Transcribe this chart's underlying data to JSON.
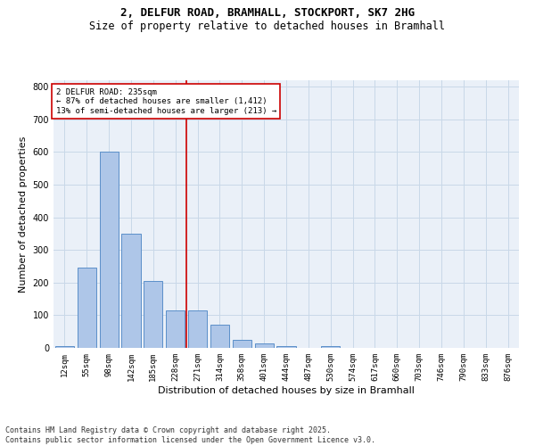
{
  "title1": "2, DELFUR ROAD, BRAMHALL, STOCKPORT, SK7 2HG",
  "title2": "Size of property relative to detached houses in Bramhall",
  "xlabel": "Distribution of detached houses by size in Bramhall",
  "ylabel": "Number of detached properties",
  "bar_labels": [
    "12sqm",
    "55sqm",
    "98sqm",
    "142sqm",
    "185sqm",
    "228sqm",
    "271sqm",
    "314sqm",
    "358sqm",
    "401sqm",
    "444sqm",
    "487sqm",
    "530sqm",
    "574sqm",
    "617sqm",
    "660sqm",
    "703sqm",
    "746sqm",
    "790sqm",
    "833sqm",
    "876sqm"
  ],
  "bar_values": [
    5,
    245,
    600,
    350,
    205,
    115,
    115,
    70,
    25,
    15,
    5,
    0,
    5,
    0,
    0,
    0,
    0,
    0,
    0,
    0,
    0
  ],
  "bar_color": "#aec6e8",
  "bar_edge_color": "#5b8fc9",
  "vline_x": 5.5,
  "vline_color": "#cc0000",
  "annotation_text": "2 DELFUR ROAD: 235sqm\n← 87% of detached houses are smaller (1,412)\n13% of semi-detached houses are larger (213) →",
  "annotation_box_color": "#ffffff",
  "annotation_box_edge": "#cc0000",
  "ylim": [
    0,
    820
  ],
  "yticks": [
    0,
    100,
    200,
    300,
    400,
    500,
    600,
    700,
    800
  ],
  "grid_color": "#c8d8e8",
  "bg_color": "#eaf0f8",
  "footer": "Contains HM Land Registry data © Crown copyright and database right 2025.\nContains public sector information licensed under the Open Government Licence v3.0.",
  "title1_fontsize": 9,
  "title2_fontsize": 8.5,
  "xlabel_fontsize": 8,
  "ylabel_fontsize": 8,
  "footer_fontsize": 6,
  "tick_fontsize": 6.5,
  "ytick_fontsize": 7,
  "ann_fontsize": 6.5
}
